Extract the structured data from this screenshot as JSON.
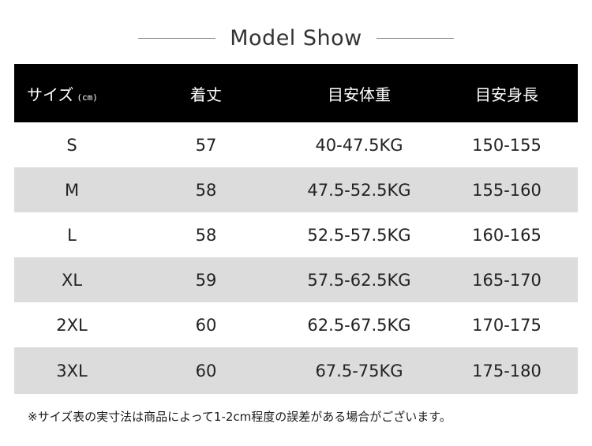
{
  "title": "Model Show",
  "stray_mark": ")",
  "table": {
    "headers": {
      "size": "サイズ",
      "size_unit": "(cm)",
      "length": "着丈",
      "weight": "目安体重",
      "height": "目安身長"
    },
    "rows": [
      {
        "size": "S",
        "length": "57",
        "weight": "40-47.5KG",
        "height": "150-155"
      },
      {
        "size": "M",
        "length": "58",
        "weight": "47.5-52.5KG",
        "height": "155-160"
      },
      {
        "size": "L",
        "length": "58",
        "weight": "52.5-57.5KG",
        "height": "160-165"
      },
      {
        "size": "XL",
        "length": "59",
        "weight": "57.5-62.5KG",
        "height": "165-170"
      },
      {
        "size": "2XL",
        "length": "60",
        "weight": "62.5-67.5KG",
        "height": "170-175"
      },
      {
        "size": "3XL",
        "length": "60",
        "weight": "67.5-75KG",
        "height": "175-180"
      }
    ]
  },
  "note": "※サイズ表の実寸法は商品によって1-2cm程度の誤差がある場合がございます。",
  "colors": {
    "header_bg": "#000000",
    "stripe": "#dcdcdc"
  }
}
